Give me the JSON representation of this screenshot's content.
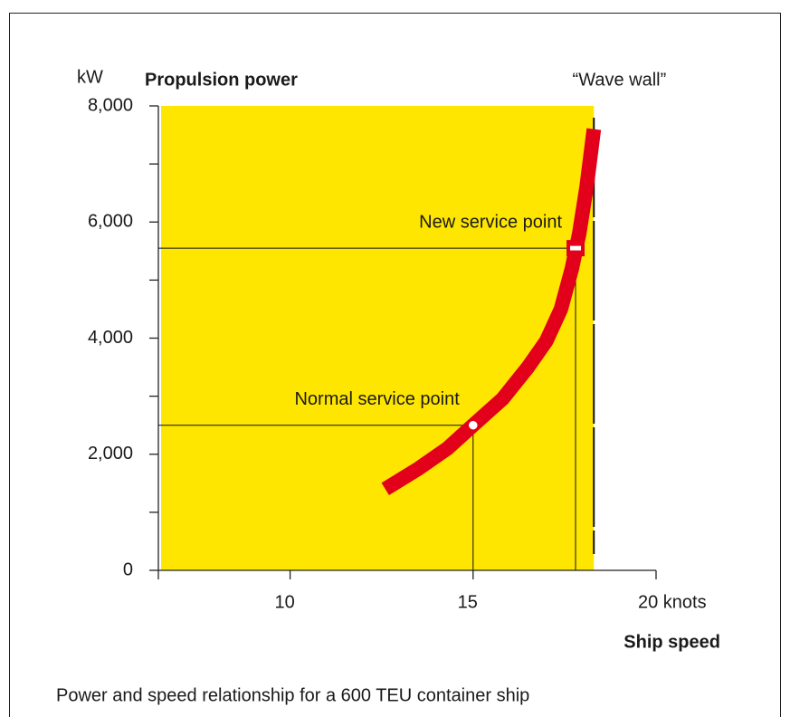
{
  "chart_data": {
    "type": "line",
    "title": "Propulsion power",
    "y_unit": "kW",
    "xlabel": "Ship speed",
    "caption": "Power and speed relationship for a 600 TEU container ship",
    "background_color": "#ffe600",
    "x": [
      12.6,
      13.5,
      14.3,
      15,
      15.8,
      16.5,
      17,
      17.4,
      17.7,
      17.9,
      18.1,
      18.3
    ],
    "series": [
      {
        "color": "#e2001a",
        "values": [
          1400,
          1750,
          2100,
          2500,
          2950,
          3500,
          3950,
          4500,
          5200,
          5800,
          6600,
          7600
        ]
      }
    ],
    "xlim": [
      6.4,
      20
    ],
    "xticks": [
      10,
      15,
      {
        "value": 20,
        "label": "20 knots"
      }
    ],
    "ylim": [
      0,
      8000
    ],
    "yticks": [
      0,
      {
        "value": 2000,
        "label": "2,000"
      },
      {
        "value": 4000,
        "label": "4,000"
      },
      {
        "value": 6000,
        "label": "6,000"
      },
      {
        "value": 8000,
        "label": "8,000"
      }
    ],
    "yminor_ticks": [
      1000,
      3000,
      5000,
      7000
    ],
    "points": [
      {
        "label": "Normal service point",
        "x": 15,
        "y": 2500
      },
      {
        "label": "New service  point",
        "x": 17.8,
        "y": 5550
      }
    ],
    "wave_wall": {
      "label": "“Wave wall”",
      "x": 18.3
    }
  }
}
